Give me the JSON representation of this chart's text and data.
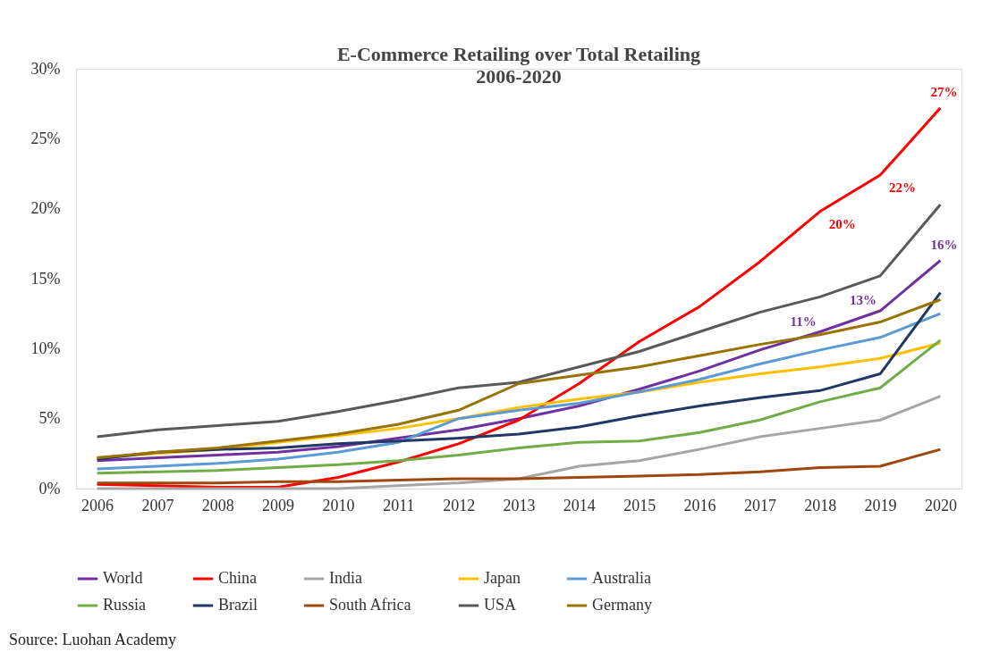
{
  "chart_data": {
    "type": "line",
    "title": "E-Commerce Retailing over Total Retailing",
    "subtitle": "2006-2020",
    "categories": [
      "2006",
      "2007",
      "2008",
      "2009",
      "2010",
      "2011",
      "2012",
      "2013",
      "2014",
      "2015",
      "2016",
      "2017",
      "2018",
      "2019",
      "2020"
    ],
    "ylim": [
      0,
      30
    ],
    "yticks": [
      {
        "value": 0,
        "label": "0%"
      },
      {
        "value": 5,
        "label": "5%"
      },
      {
        "value": 10,
        "label": "10%"
      },
      {
        "value": 15,
        "label": "15%"
      },
      {
        "value": 20,
        "label": "20%"
      },
      {
        "value": 25,
        "label": "25%"
      },
      {
        "value": 30,
        "label": "30%"
      }
    ],
    "grid": false,
    "legend": "bottom",
    "marker": "none",
    "line_style": "solid",
    "annotations": [
      "Source: Luohan Academy"
    ],
    "series": [
      {
        "name": "World",
        "color": "#7030a0",
        "values": [
          2.0,
          2.2,
          2.4,
          2.6,
          3.0,
          3.6,
          4.2,
          5.0,
          5.9,
          7.1,
          8.4,
          9.9,
          11.2,
          12.7,
          16.3
        ],
        "value_labels": [
          null,
          null,
          null,
          null,
          null,
          null,
          null,
          null,
          null,
          null,
          null,
          null,
          "11%",
          "13%",
          "16%"
        ]
      },
      {
        "name": "China",
        "color": "#ff0000",
        "values": [
          0.3,
          0.2,
          0.1,
          0.1,
          0.8,
          1.9,
          3.2,
          4.9,
          7.5,
          10.5,
          13.0,
          16.2,
          19.8,
          22.4,
          27.2
        ],
        "value_labels": [
          null,
          null,
          null,
          null,
          null,
          null,
          null,
          null,
          null,
          null,
          null,
          null,
          "20%",
          "22%",
          "27%"
        ]
      },
      {
        "name": "India",
        "color": "#a6a6a6",
        "values": [
          0.0,
          0.0,
          0.0,
          0.0,
          0.0,
          0.2,
          0.4,
          0.7,
          1.6,
          2.0,
          2.8,
          3.7,
          4.3,
          4.9,
          6.6
        ]
      },
      {
        "name": "Japan",
        "color": "#ffc000",
        "values": [
          2.2,
          2.5,
          2.8,
          3.3,
          3.8,
          4.3,
          5.0,
          5.8,
          6.4,
          6.9,
          7.6,
          8.2,
          8.7,
          9.3,
          10.4
        ]
      },
      {
        "name": "Australia",
        "color": "#5b9bd5",
        "values": [
          1.4,
          1.6,
          1.8,
          2.1,
          2.6,
          3.3,
          5.0,
          5.6,
          6.1,
          6.9,
          7.8,
          8.9,
          9.9,
          10.8,
          12.5
        ]
      },
      {
        "name": "Russia",
        "color": "#70ad47",
        "values": [
          1.1,
          1.2,
          1.3,
          1.5,
          1.7,
          2.0,
          2.4,
          2.9,
          3.3,
          3.4,
          4.0,
          4.9,
          6.2,
          7.2,
          10.6
        ]
      },
      {
        "name": "Brazil",
        "color": "#203864",
        "values": [
          2.1,
          2.6,
          2.8,
          2.9,
          3.2,
          3.4,
          3.6,
          3.9,
          4.4,
          5.2,
          5.9,
          6.5,
          7.0,
          8.2,
          14.0
        ]
      },
      {
        "name": "South Africa",
        "color": "#9e480e",
        "values": [
          0.4,
          0.4,
          0.4,
          0.5,
          0.5,
          0.6,
          0.7,
          0.7,
          0.8,
          0.9,
          1.0,
          1.2,
          1.5,
          1.6,
          2.8
        ]
      },
      {
        "name": "USA",
        "color": "#595959",
        "values": [
          3.7,
          4.2,
          4.5,
          4.8,
          5.5,
          6.3,
          7.2,
          7.6,
          8.7,
          9.8,
          11.2,
          12.6,
          13.7,
          15.2,
          20.3
        ]
      },
      {
        "name": "Germany",
        "color": "#997300",
        "values": [
          2.2,
          2.6,
          2.9,
          3.4,
          3.9,
          4.6,
          5.6,
          7.5,
          8.1,
          8.7,
          9.5,
          10.3,
          11.0,
          11.9,
          13.5
        ]
      }
    ]
  }
}
